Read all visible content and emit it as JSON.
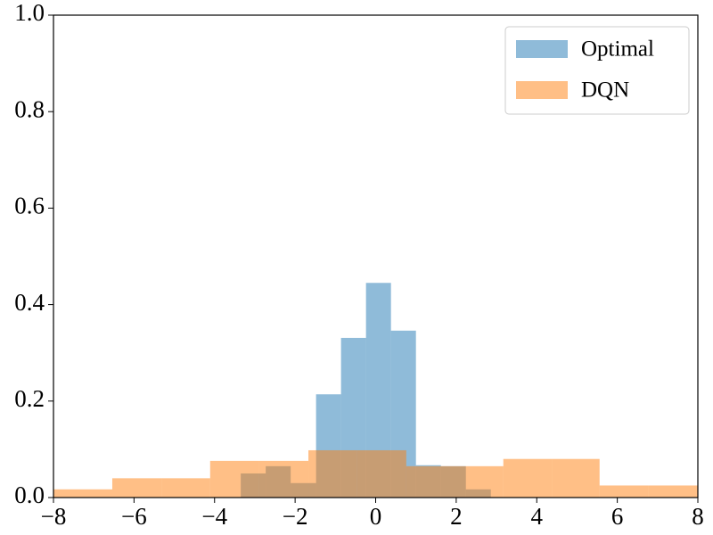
{
  "chart_data": {
    "type": "histogram",
    "series": [
      {
        "name": "Optimal",
        "color": "#1f77b4",
        "bins": [
          -3.35,
          -2.73,
          -2.11,
          -1.48,
          -0.86,
          -0.24,
          0.38,
          1.0,
          1.62,
          2.24,
          2.86
        ],
        "values": [
          0.05,
          0.065,
          0.03,
          0.214,
          0.331,
          0.445,
          0.346,
          0.067,
          0.065,
          0.017
        ]
      },
      {
        "name": "DQN",
        "color": "#ff7f0e",
        "bins": [
          -8.0,
          -6.54,
          -5.32,
          -4.11,
          -2.89,
          -1.67,
          -0.46,
          0.76,
          1.98,
          3.17,
          4.39,
          5.56,
          6.78,
          8.0
        ],
        "values": [
          0.017,
          0.04,
          0.04,
          0.076,
          0.076,
          0.098,
          0.098,
          0.065,
          0.065,
          0.08,
          0.08,
          0.025,
          0.025
        ]
      }
    ],
    "opacity": 0.5,
    "xlim": [
      -8,
      8
    ],
    "xticks": [
      {
        "value": -8,
        "label": "−8"
      },
      {
        "value": -6,
        "label": "−6"
      },
      {
        "value": -4,
        "label": "−4"
      },
      {
        "value": -2,
        "label": "−2"
      },
      0,
      2,
      4,
      6,
      8
    ],
    "ylim": [
      0,
      1
    ],
    "yticks": [
      {
        "value": 0,
        "label": "0.0"
      },
      0.2,
      0.4,
      0.6,
      0.8,
      {
        "value": 1,
        "label": "1.0"
      }
    ],
    "legend": "upper right"
  }
}
